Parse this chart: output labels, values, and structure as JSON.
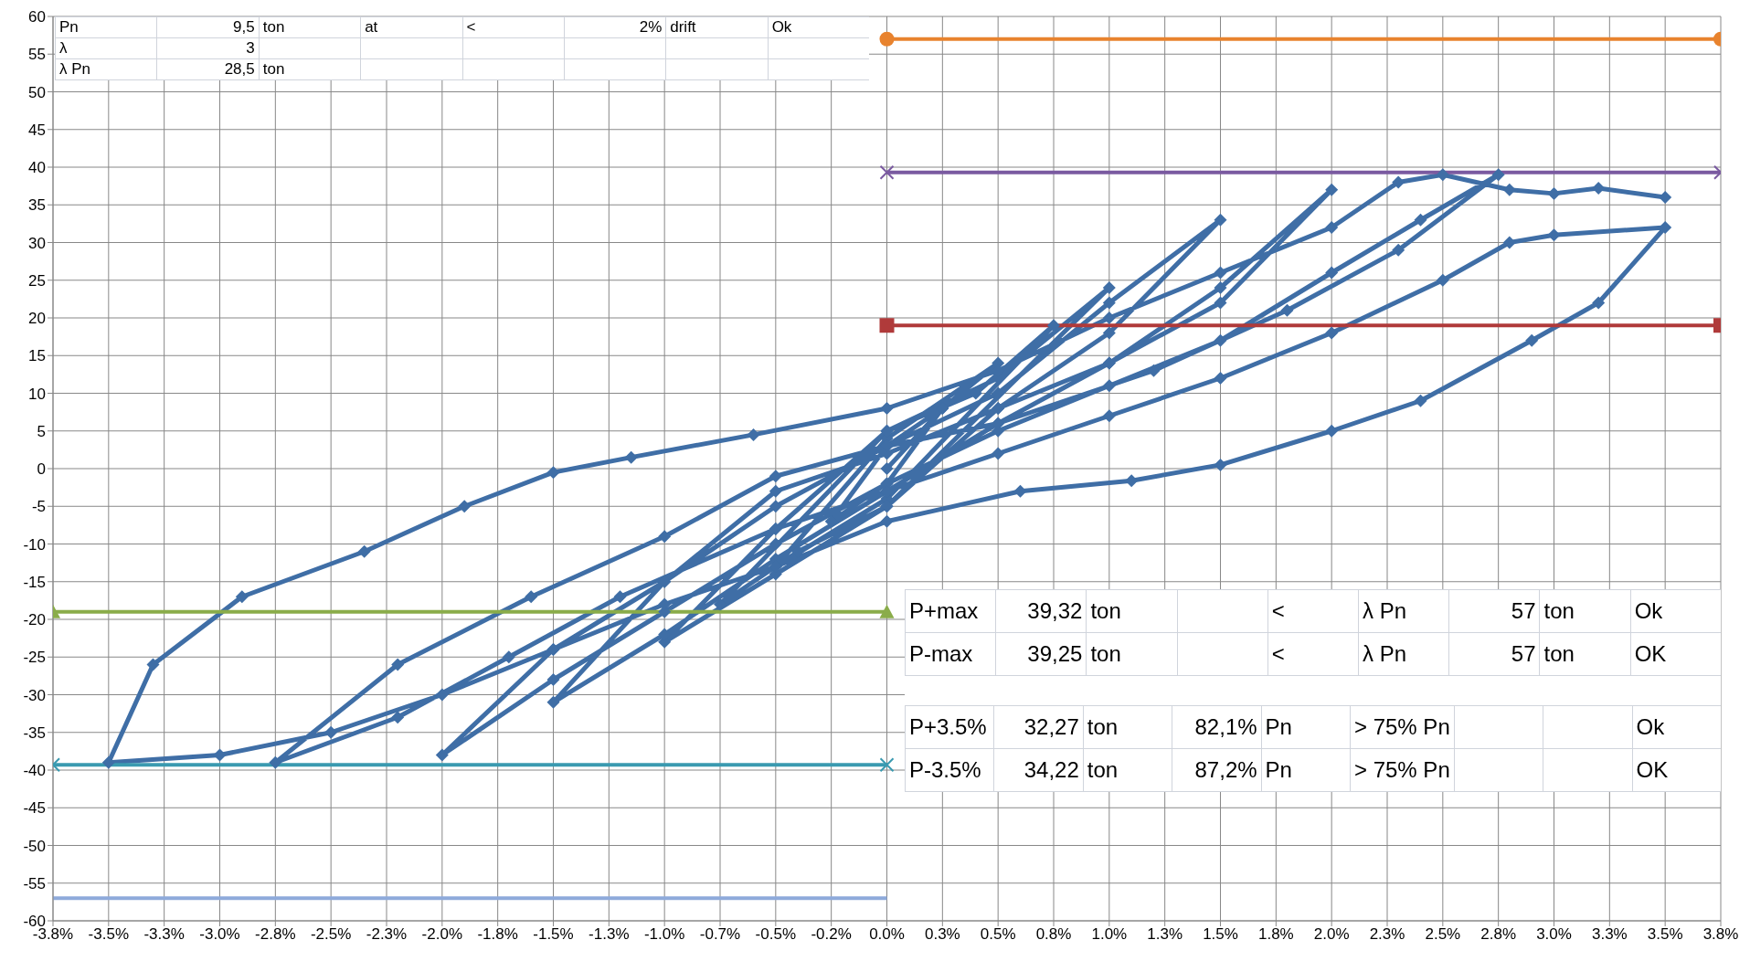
{
  "chart_data": {
    "type": "line",
    "xlim": [
      -3.75,
      3.75
    ],
    "xticks": [
      {
        "value": -3.75,
        "label": "-3.8%"
      },
      {
        "value": -3.5,
        "label": "-3.5%"
      },
      {
        "value": -3.25,
        "label": "-3.3%"
      },
      {
        "value": -3,
        "label": "-3.0%"
      },
      {
        "value": -2.75,
        "label": "-2.8%"
      },
      {
        "value": -2.5,
        "label": "-2.5%"
      },
      {
        "value": -2.25,
        "label": "-2.3%"
      },
      {
        "value": -2,
        "label": "-2.0%"
      },
      {
        "value": -1.75,
        "label": "-1.8%"
      },
      {
        "value": -1.5,
        "label": "-1.5%"
      },
      {
        "value": -1.25,
        "label": "-1.3%"
      },
      {
        "value": -1,
        "label": "-1.0%"
      },
      {
        "value": -0.75,
        "label": "-0.7%"
      },
      {
        "value": -0.5,
        "label": "-0.5%"
      },
      {
        "value": -0.25,
        "label": "-0.2%"
      },
      {
        "value": 0,
        "label": "0.0%"
      },
      {
        "value": 0.25,
        "label": "0.3%"
      },
      {
        "value": 0.5,
        "label": "0.5%"
      },
      {
        "value": 0.75,
        "label": "0.8%"
      },
      {
        "value": 1,
        "label": "1.0%"
      },
      {
        "value": 1.25,
        "label": "1.3%"
      },
      {
        "value": 1.5,
        "label": "1.5%"
      },
      {
        "value": 1.75,
        "label": "1.8%"
      },
      {
        "value": 2,
        "label": "2.0%"
      },
      {
        "value": 2.25,
        "label": "2.3%"
      },
      {
        "value": 2.5,
        "label": "2.5%"
      },
      {
        "value": 2.75,
        "label": "2.8%"
      },
      {
        "value": 3,
        "label": "3.0%"
      },
      {
        "value": 3.25,
        "label": "3.3%"
      },
      {
        "value": 3.5,
        "label": "3.5%"
      },
      {
        "value": 3.75,
        "label": "3.8%"
      }
    ],
    "ylim": [
      -60,
      60
    ],
    "yticks": [
      -60,
      -55,
      -50,
      -45,
      -40,
      -35,
      -30,
      -25,
      -20,
      -15,
      -10,
      -5,
      0,
      5,
      10,
      15,
      20,
      25,
      30,
      35,
      40,
      45,
      50,
      55,
      60
    ],
    "grid": true,
    "series": [
      {
        "color": "#3f6ea6",
        "marker": "diamond",
        "x": [
          0,
          0.25,
          0,
          -0.25,
          0,
          0.25,
          0.5,
          0,
          -0.5,
          0,
          0.75,
          0.4,
          0,
          -0.75,
          -0.4,
          0,
          1,
          0.5,
          0,
          -0.5,
          -1,
          -0.5,
          0,
          0.5,
          1,
          1.5,
          1,
          0.5,
          0,
          -0.5,
          -1,
          -1.5,
          -1,
          -0.5,
          0,
          0.5,
          1,
          1.5,
          2,
          1.5,
          1,
          0.5,
          0,
          -0.5,
          -1,
          -1.5,
          -2,
          -1.5,
          -1,
          -0.5,
          0,
          0.5,
          1,
          1.5,
          2,
          2.4,
          2.75,
          2.3,
          1.8,
          1.2,
          0.5,
          0,
          -0.5,
          -1,
          -1.6,
          -2.2,
          -2.75,
          -2.2,
          -1.7,
          -1.2,
          -0.5,
          0,
          0.5,
          1,
          1.5,
          2,
          2.5,
          2.8,
          3,
          3.5,
          3.2,
          2.9,
          2.4,
          2,
          1.5,
          1.1,
          0.6,
          0,
          -0.5,
          -1,
          -1.5,
          -2,
          -2.5,
          -3,
          -3.5,
          -3.3,
          -2.9,
          -2.35,
          -1.9,
          -1.5,
          -1.15,
          -0.6,
          0,
          0.5,
          1,
          1.5,
          2,
          2.3,
          2.5,
          2.8,
          3,
          3.2,
          3.5
        ],
        "values": [
          0,
          8,
          3,
          -7,
          -2,
          8,
          14,
          4,
          -13,
          -4,
          19,
          10,
          5,
          -18,
          -11,
          -5,
          24,
          12,
          5,
          -8,
          -23,
          -14,
          -5,
          8,
          18,
          33,
          22,
          10,
          3,
          -5,
          -15,
          -31,
          -22,
          -12,
          -3,
          6,
          14,
          22,
          37,
          24,
          14,
          8,
          2,
          -3,
          -15,
          -24,
          -38,
          -28,
          -19,
          -10,
          -2,
          5,
          11,
          17,
          26,
          33,
          39,
          29,
          21,
          13,
          6,
          3,
          -1,
          -9,
          -17,
          -26,
          -39,
          -33,
          -25,
          -17,
          -8,
          -3,
          2,
          7,
          12,
          18,
          25,
          30,
          31,
          32,
          22,
          17,
          9,
          5,
          0.5,
          -1.6,
          -3,
          -7,
          -13,
          -18,
          -24,
          -30,
          -35,
          -38,
          -39,
          -26,
          -17,
          -11,
          -5,
          -0.5,
          1.5,
          4.5,
          8,
          13,
          20,
          26,
          32,
          38,
          39,
          37,
          36.5,
          37.2,
          36
        ]
      },
      {
        "color": "#e8832e",
        "marker": "circle",
        "x": [
          0,
          3.75
        ],
        "values": [
          57,
          57
        ]
      },
      {
        "color": "#7a5aa0",
        "marker": "cross",
        "x": [
          0,
          3.75
        ],
        "values": [
          39.3,
          39.3
        ]
      },
      {
        "color": "#b03a3a",
        "marker": "square",
        "x": [
          0,
          3.75
        ],
        "values": [
          19,
          19
        ]
      },
      {
        "color": "#8aac4a",
        "marker": "triangle",
        "x": [
          0,
          -3.75
        ],
        "values": [
          -19,
          -19
        ]
      },
      {
        "color": "#3a9ab0",
        "marker": "cross",
        "x": [
          0,
          -3.75
        ],
        "values": [
          -39.3,
          -39.3
        ]
      },
      {
        "color": "#8eaadb",
        "marker": "none",
        "x": [
          0,
          -3.75
        ],
        "values": [
          -57,
          -57
        ]
      }
    ],
    "annotations": [
      "Pn\t9,5\tton\tat\t<\t2%\tdrift\tOk",
      "λ\t3\t\t\t\t\t\t",
      "λ Pn\t28,5\tton\t\t\t\t\t",
      "P+max\t39,32\tton\t\t<\tλ Pn\t57\tton\tOk",
      "P-max\t39,25\tton\t\t<\tλ Pn\t57\tton\tOK",
      "P+3.5%\t32,27\tton\t82,1%\tPn\t> 75% Pn\t\t\tOk",
      "P-3.5%\t34,22\tton\t87,2%\tPn\t> 75% Pn\t\t\tOK"
    ]
  }
}
